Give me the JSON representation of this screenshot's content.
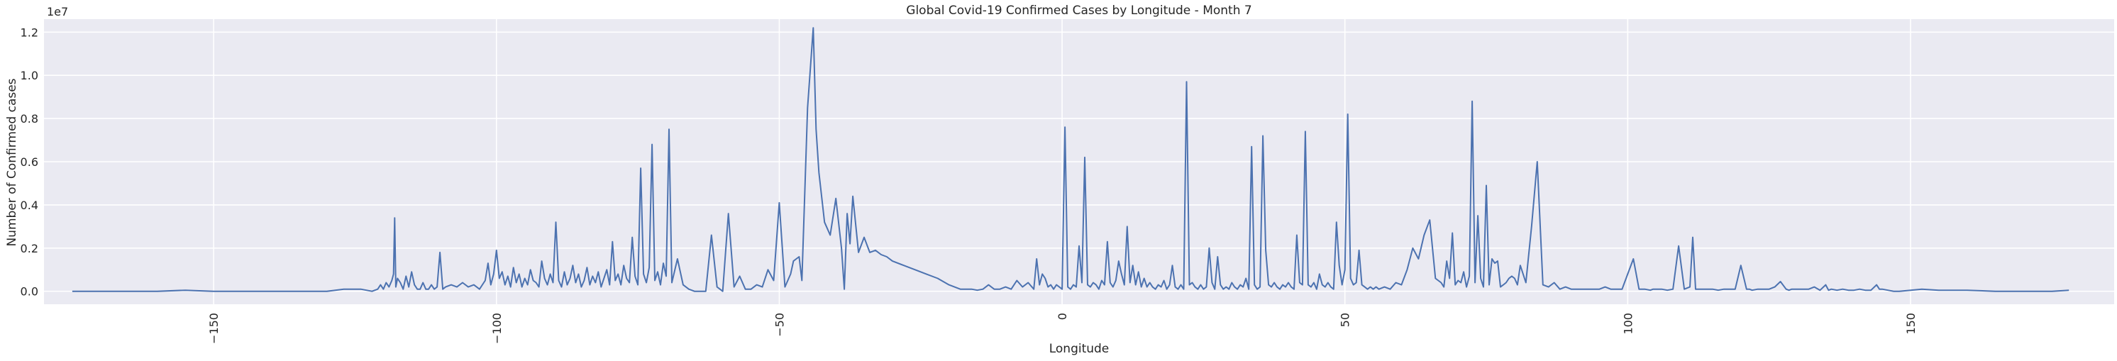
{
  "chart_data": {
    "type": "line",
    "title": "Global Covid-19 Confirmed Cases by Longitude - Month 7",
    "xlabel": "Longitude",
    "ylabel": "Number of Confirmed cases",
    "y_offset_label": "1e7",
    "xlim": [
      -180,
      186
    ],
    "ylim": [
      -0.6,
      12.6
    ],
    "y_scale_note": "values in units of 1e7 cases (ticks 0.0 to 1.2)",
    "x_ticks": [
      -150,
      -100,
      -50,
      0,
      50,
      100,
      150
    ],
    "x_tick_labels": [
      "−150",
      "−100",
      "−50",
      "0",
      "50",
      "100",
      "150"
    ],
    "y_ticks": [
      0,
      2,
      4,
      6,
      8,
      10,
      12
    ],
    "y_tick_labels": [
      "0.0",
      "0.2",
      "0.4",
      "0.6",
      "0.8",
      "1.0",
      "1.2"
    ],
    "grid": true,
    "line_color": "#4c72b0",
    "background_color": "#eaeaf2",
    "series": [
      {
        "values_unit": "millions of cases",
        "x": [
          -175,
          -165,
          -160,
          -155,
          -150,
          -145,
          -140,
          -135,
          -130,
          -127,
          -124,
          -122,
          -121,
          -120.5,
          -120,
          -119.5,
          -119,
          -118.5,
          -118.2,
          -118,
          -117.8,
          -117.5,
          -117,
          -116.5,
          -116,
          -115.5,
          -115,
          -114.5,
          -114,
          -113.5,
          -113,
          -112.5,
          -112,
          -111.5,
          -111,
          -110.5,
          -110,
          -109.5,
          -109,
          -108,
          -107,
          -106,
          -105,
          -104,
          -103,
          -102,
          -101.5,
          -101,
          -100.5,
          -100,
          -99.5,
          -99,
          -98.5,
          -98,
          -97.5,
          -97,
          -96.5,
          -96,
          -95.5,
          -95,
          -94.5,
          -94,
          -93.5,
          -93,
          -92.5,
          -92,
          -91.5,
          -91,
          -90.5,
          -90,
          -89.5,
          -89,
          -88.5,
          -88,
          -87.5,
          -87,
          -86.5,
          -86,
          -85.5,
          -85,
          -84.5,
          -84,
          -83.5,
          -83,
          -82.5,
          -82,
          -81.5,
          -81,
          -80.5,
          -80,
          -79.5,
          -79,
          -78.5,
          -78,
          -77.5,
          -77,
          -76.5,
          -76,
          -75.5,
          -75,
          -74.5,
          -74,
          -73.5,
          -73,
          -72.5,
          -72,
          -71.5,
          -71,
          -70.5,
          -70,
          -69.5,
          -69,
          -68,
          -67,
          -66,
          -65,
          -64,
          -63,
          -62,
          -61,
          -60,
          -59,
          -58,
          -57,
          -56,
          -55,
          -54,
          -53,
          -52,
          -51,
          -50,
          -49,
          -48,
          -47.5,
          -47,
          -46.5,
          -46,
          -45.5,
          -45,
          -44,
          -43.5,
          -43,
          -42,
          -41,
          -40,
          -39,
          -38.5,
          -38,
          -37.5,
          -37,
          -36,
          -35,
          -34,
          -33,
          -32,
          -31,
          -30,
          -28,
          -26,
          -24,
          -22,
          -20,
          -18,
          -17,
          -16,
          -15,
          -14,
          -13,
          -12,
          -11,
          -10,
          -9,
          -8,
          -7,
          -6,
          -5,
          -4.5,
          -4,
          -3.5,
          -3,
          -2.5,
          -2,
          -1.5,
          -1,
          -0.5,
          0,
          0.5,
          1,
          1.5,
          2,
          2.5,
          3,
          3.5,
          4,
          4.5,
          5,
          5.5,
          6,
          6.5,
          7,
          7.5,
          8,
          8.5,
          9,
          9.5,
          10,
          10.5,
          11,
          11.5,
          12,
          12.5,
          13,
          13.5,
          14,
          14.5,
          15,
          15.5,
          16,
          16.5,
          17,
          17.5,
          18,
          18.5,
          19,
          19.5,
          20,
          20.5,
          21,
          21.5,
          22,
          22.5,
          23,
          23.5,
          24,
          24.5,
          25,
          25.5,
          26,
          26.5,
          27,
          27.5,
          28,
          28.5,
          29,
          29.5,
          30,
          30.5,
          31,
          31.5,
          32,
          32.5,
          33,
          33.5,
          34,
          34.5,
          35,
          35.5,
          36,
          36.5,
          37,
          37.5,
          38,
          38.5,
          39,
          39.5,
          40,
          40.5,
          41,
          41.5,
          42,
          42.5,
          43,
          43.5,
          44,
          44.5,
          45,
          45.5,
          46,
          46.5,
          47,
          47.5,
          48,
          48.5,
          49,
          49.5,
          50,
          50.5,
          51,
          51.5,
          52,
          52.5,
          53,
          53.5,
          54,
          54.5,
          55,
          55.5,
          56,
          57,
          58,
          59,
          60,
          61,
          62,
          63,
          64,
          65,
          66,
          67,
          67.5,
          68,
          68.5,
          69,
          69.5,
          70,
          70.5,
          71,
          71.5,
          72,
          72.5,
          73,
          73.5,
          74,
          74.5,
          75,
          75.5,
          76,
          76.5,
          77,
          77.5,
          78,
          78.5,
          79,
          79.5,
          80,
          80.5,
          81,
          82,
          83,
          84,
          85,
          86,
          87,
          88,
          89,
          90,
          91,
          92,
          93,
          94,
          95,
          96,
          97,
          98,
          99,
          100,
          101,
          102,
          103,
          104,
          104.5,
          105,
          106,
          107,
          108,
          109,
          110,
          111,
          111.5,
          112,
          113,
          113.5,
          114,
          115,
          116,
          117,
          118,
          119,
          120,
          121,
          121.5,
          122,
          123,
          124,
          125,
          126,
          127,
          128,
          128.5,
          129,
          130,
          131,
          132,
          133,
          134,
          135,
          135.5,
          136,
          137,
          138,
          139,
          140,
          141,
          142,
          143,
          144,
          144.5,
          145,
          146,
          147,
          148,
          150,
          152,
          155,
          160,
          165,
          170,
          175,
          178
        ],
        "values": [
          0,
          0,
          0,
          0.05,
          0,
          0,
          0,
          0,
          0,
          0.1,
          0.1,
          0,
          0.1,
          0.3,
          0.1,
          0.4,
          0.2,
          0.5,
          0.8,
          3.4,
          0.2,
          0.6,
          0.4,
          0.1,
          0.7,
          0.2,
          0.9,
          0.3,
          0.1,
          0.1,
          0.4,
          0.1,
          0.1,
          0.3,
          0.1,
          0.2,
          1.8,
          0.1,
          0.2,
          0.3,
          0.2,
          0.4,
          0.2,
          0.3,
          0.1,
          0.5,
          1.3,
          0.3,
          0.8,
          1.9,
          0.6,
          0.9,
          0.3,
          0.7,
          0.2,
          1.1,
          0.4,
          0.8,
          0.2,
          0.6,
          0.3,
          1.0,
          0.5,
          0.4,
          0.2,
          1.4,
          0.6,
          0.3,
          0.8,
          0.4,
          3.2,
          0.5,
          0.2,
          0.9,
          0.3,
          0.6,
          1.2,
          0.4,
          0.8,
          0.2,
          0.5,
          1.1,
          0.3,
          0.7,
          0.4,
          0.9,
          0.2,
          0.6,
          1.0,
          0.3,
          2.3,
          0.5,
          0.8,
          0.3,
          1.2,
          0.6,
          0.4,
          2.5,
          0.7,
          0.3,
          5.7,
          0.8,
          0.4,
          1.1,
          6.8,
          0.5,
          0.9,
          0.3,
          1.3,
          0.7,
          7.5,
          0.4,
          1.5,
          0.3,
          0.1,
          0,
          0,
          0,
          2.6,
          0.2,
          0,
          3.6,
          0.2,
          0.7,
          0.1,
          0.1,
          0.3,
          0.2,
          1.0,
          0.5,
          4.1,
          0.2,
          0.8,
          1.4,
          1.5,
          1.6,
          0.5,
          4.5,
          8.5,
          12.2,
          7.5,
          5.5,
          3.2,
          2.6,
          4.3,
          2.0,
          0.1,
          3.6,
          2.2,
          4.4,
          1.8,
          2.5,
          1.8,
          1.9,
          1.7,
          1.6,
          1.4,
          1.2,
          1.0,
          0.8,
          0.6,
          0.3,
          0.1,
          0.1,
          0.1,
          0.05,
          0.1,
          0.3,
          0.1,
          0.1,
          0.2,
          0.1,
          0.5,
          0.2,
          0.4,
          0.1,
          1.5,
          0.3,
          0.8,
          0.6,
          0.2,
          0.3,
          0.1,
          0.3,
          0.2,
          0.1,
          7.6,
          0.2,
          0.1,
          0.3,
          0.2,
          2.1,
          0.4,
          6.2,
          0.3,
          0.2,
          0.4,
          0.3,
          0.1,
          0.5,
          0.3,
          2.3,
          0.4,
          0.2,
          0.5,
          1.4,
          0.8,
          0.3,
          3.0,
          0.4,
          1.2,
          0.3,
          0.9,
          0.2,
          0.6,
          0.2,
          0.4,
          0.2,
          0.1,
          0.3,
          0.2,
          0.5,
          0.1,
          0.3,
          1.2,
          0.2,
          0.1,
          0.3,
          0.1,
          9.7,
          0.3,
          0.4,
          0.2,
          0.1,
          0.3,
          0.1,
          0.2,
          2.0,
          0.4,
          0.1,
          1.6,
          0.3,
          0.1,
          0.2,
          0.1,
          0.4,
          0.2,
          0.1,
          0.3,
          0.2,
          0.6,
          0.1,
          6.7,
          0.3,
          0.1,
          0.2,
          7.2,
          1.9,
          0.3,
          0.2,
          0.4,
          0.2,
          0.1,
          0.3,
          0.2,
          0.4,
          0.2,
          0.1,
          2.6,
          0.4,
          0.3,
          7.4,
          0.3,
          0.2,
          0.4,
          0.1,
          0.8,
          0.3,
          0.2,
          0.4,
          0.2,
          0.1,
          3.2,
          1.2,
          0.3,
          1.0,
          8.2,
          0.6,
          0.3,
          0.4,
          1.9,
          0.3,
          0.2,
          0.1,
          0.2,
          0.1,
          0.2,
          0.1,
          0.2,
          0.1,
          0.4,
          0.3,
          1.0,
          2.0,
          1.5,
          2.6,
          3.3,
          0.6,
          0.4,
          0.2,
          1.4,
          0.6,
          2.7,
          0.3,
          0.5,
          0.4,
          0.9,
          0.2,
          0.7,
          8.8,
          0.4,
          3.5,
          0.6,
          0.2,
          4.9,
          0.3,
          1.5,
          1.3,
          1.4,
          0.2,
          0.3,
          0.4,
          0.6,
          0.7,
          0.6,
          0.3,
          1.2,
          0.4,
          3.0,
          6.0,
          0.3,
          0.2,
          0.4,
          0.1,
          0.2,
          0.1,
          0.1,
          0.1,
          0.1,
          0.1,
          0.1,
          0.2,
          0.1,
          0.1,
          0.1,
          0.8,
          1.5,
          0.1,
          0.1,
          0.05,
          0.1,
          0.1,
          0.1,
          0.05,
          0.1,
          2.1,
          0.1,
          0.2,
          2.5,
          0.1,
          0.1,
          0.1,
          0.1,
          0.1,
          0.05,
          0.1,
          0.1,
          0.1,
          1.2,
          0.1,
          0.1,
          0.05,
          0.1,
          0.1,
          0.1,
          0.2,
          0.45,
          0.1,
          0.05,
          0.1,
          0.1,
          0.1,
          0.1,
          0.2,
          0.05,
          0.3,
          0.05,
          0.1,
          0.05,
          0.1,
          0.05,
          0.05,
          0.1,
          0.05,
          0.05,
          0.3,
          0.1,
          0.1,
          0.05,
          0,
          0,
          0.05,
          0.1,
          0.05,
          0.05,
          0,
          0,
          0,
          0.05
        ]
      }
    ]
  }
}
